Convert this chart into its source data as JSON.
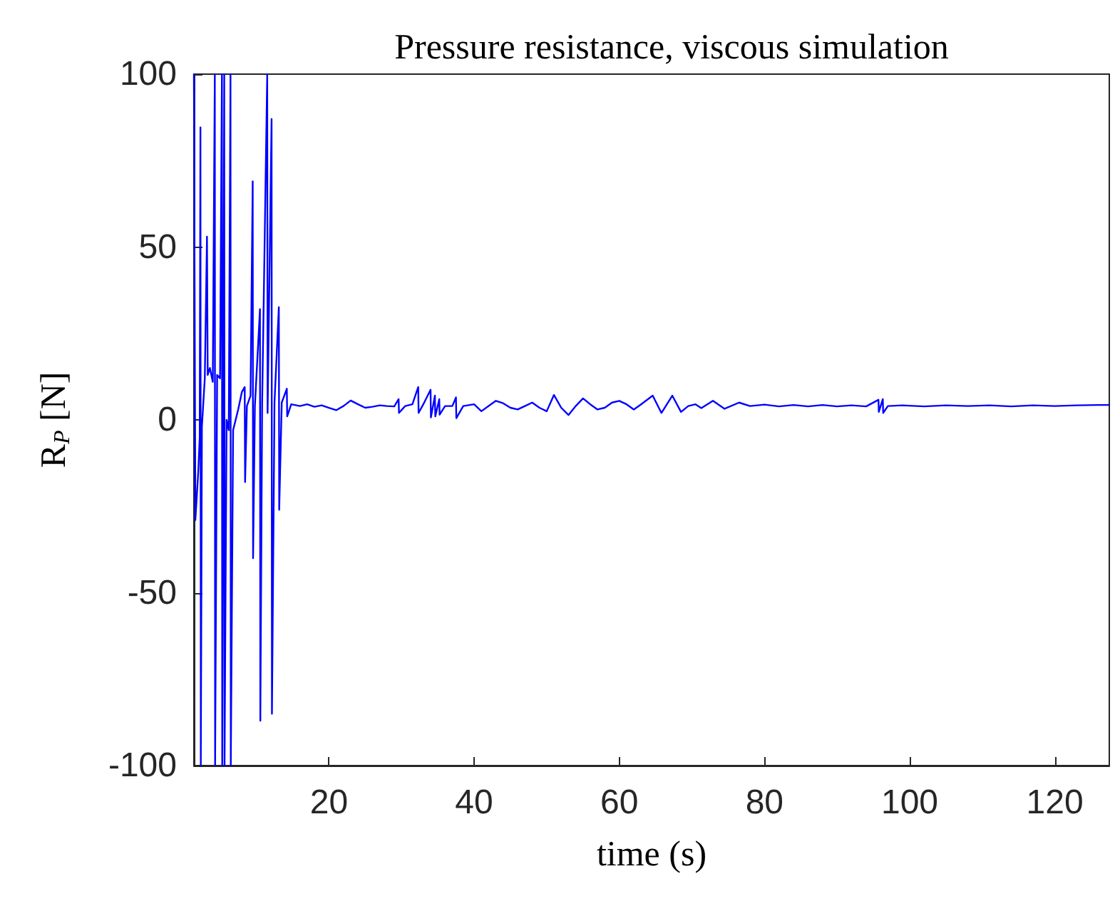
{
  "chart_data": {
    "type": "line",
    "title": "Pressure resistance, viscous simulation",
    "xlabel": "time (s)",
    "ylabel": "R$_{P}$ [N]",
    "xlim": [
      1.4,
      127.5
    ],
    "xticks": [
      20,
      40,
      60,
      80,
      100,
      120
    ],
    "ylim": [
      -100,
      100
    ],
    "yticks": [
      -100,
      -50,
      0,
      50,
      100
    ],
    "marker": "none",
    "line_style": "solid",
    "series": [
      {
        "color": "#0000ff",
        "x": [
          1.4,
          1.6,
          2.0,
          2.2,
          2.3,
          2.35,
          2.5,
          2.9,
          3.2,
          3.3,
          3.6,
          4.0,
          4.28,
          4.32,
          4.6,
          5.0,
          5.26,
          5.3,
          5.58,
          5.62,
          5.9,
          6.2,
          6.44,
          6.48,
          6.8,
          7.5,
          8.0,
          8.4,
          8.45,
          8.7,
          9.2,
          9.5,
          9.55,
          9.8,
          10.5,
          10.55,
          10.8,
          11.5,
          11.55,
          12.1,
          12.15,
          12.5,
          13.1,
          13.15,
          13.5,
          14.2,
          14.25,
          14.8,
          16,
          17,
          18,
          19,
          20,
          21,
          22,
          23,
          24,
          25,
          26,
          27,
          28,
          29,
          29.6,
          29.65,
          30.5,
          31.5,
          32.3,
          32.35,
          33,
          34,
          34.05,
          34.6,
          34.65,
          35.2,
          35.25,
          36,
          37,
          37.5,
          37.55,
          38.5,
          40,
          41,
          42,
          43,
          44,
          45,
          46,
          47,
          48,
          49,
          50,
          51,
          52,
          53,
          54,
          55,
          56,
          57,
          58,
          59,
          60,
          61,
          62,
          63,
          64.6,
          65.8,
          67.3,
          68.5,
          69.5,
          70.5,
          71.3,
          72.9,
          74.5,
          76.5,
          78,
          80,
          82,
          84,
          86,
          88,
          90,
          92,
          94,
          95.7,
          95.75,
          96.3,
          96.35,
          97,
          99,
          102,
          105,
          108,
          111,
          114,
          117,
          120,
          123,
          126,
          127.5
        ],
        "values": [
          100,
          -29,
          -15,
          -5,
          84.6,
          -100,
          -2,
          12,
          53,
          13,
          15,
          11,
          100,
          -100,
          13,
          12,
          100,
          -100,
          100,
          -100,
          0,
          -3,
          100,
          -100,
          -3,
          3,
          8,
          9.5,
          -18,
          4,
          7,
          69,
          -40,
          4,
          32,
          -87,
          5,
          100,
          2,
          87,
          -85,
          5,
          32.6,
          -26,
          5,
          9,
          1,
          4.5,
          4,
          4.5,
          3.8,
          4.2,
          3.5,
          2.8,
          4,
          5.6,
          4.5,
          3.5,
          3.8,
          4.2,
          4,
          3.9,
          6,
          2,
          4,
          4.5,
          9.5,
          2,
          4.5,
          8.7,
          0.7,
          7,
          1,
          6,
          1.5,
          4,
          4,
          6.5,
          0.5,
          4,
          4.5,
          2.5,
          4,
          5.5,
          4.8,
          3.5,
          3,
          4,
          5,
          3.5,
          2.5,
          7.2,
          3.5,
          1.4,
          4,
          6.2,
          4.5,
          3,
          3.5,
          5,
          5.5,
          4.5,
          3,
          4.5,
          7,
          2,
          7,
          2.3,
          4,
          4.5,
          3.4,
          5.5,
          3.2,
          5,
          4,
          4.4,
          3.9,
          4.3,
          3.9,
          4.3,
          3.9,
          4.2,
          3.9,
          5.8,
          2.3,
          6,
          2,
          4,
          4.2,
          3.9,
          4.2,
          4,
          4.2,
          3.9,
          4.2,
          4,
          4.2,
          4.3,
          4.3
        ]
      }
    ]
  }
}
